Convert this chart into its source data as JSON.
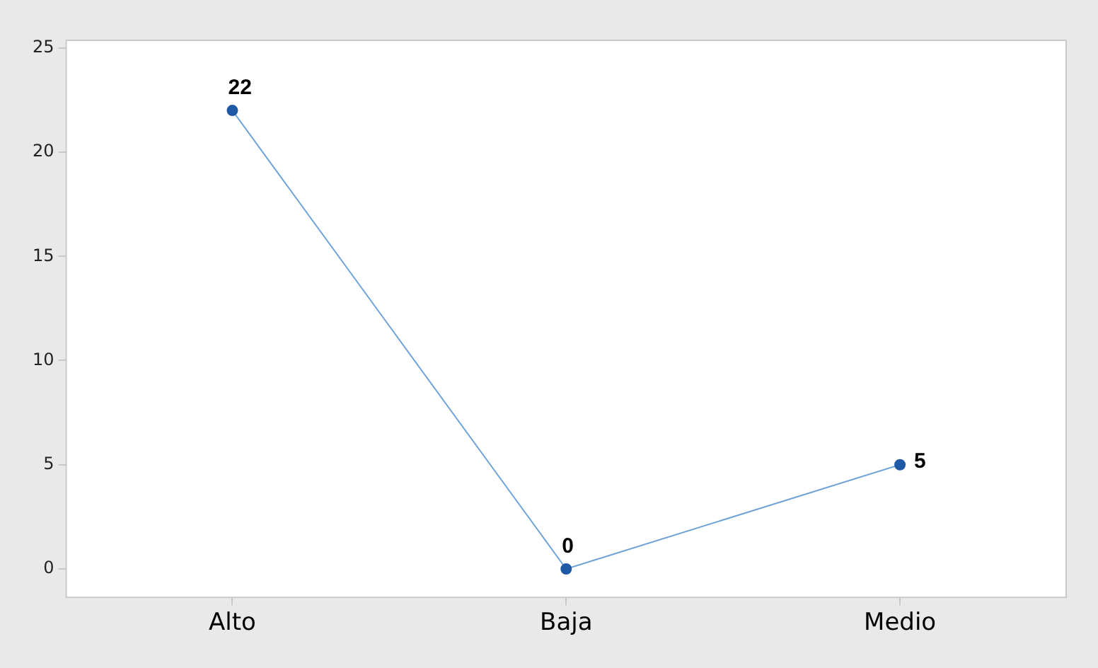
{
  "chart_data": {
    "type": "line",
    "categories": [
      "Alto",
      "Baja",
      "Medio"
    ],
    "series": [
      {
        "color": "#1f5aa6",
        "values": [
          22,
          0,
          5
        ]
      }
    ],
    "ylim": [
      -1.4,
      25.4
    ],
    "yticks": [
      0,
      5,
      10,
      15,
      20,
      25
    ],
    "grid": false,
    "legend": false,
    "marker": "circle",
    "line_style": "solid",
    "data_labels": true
  }
}
